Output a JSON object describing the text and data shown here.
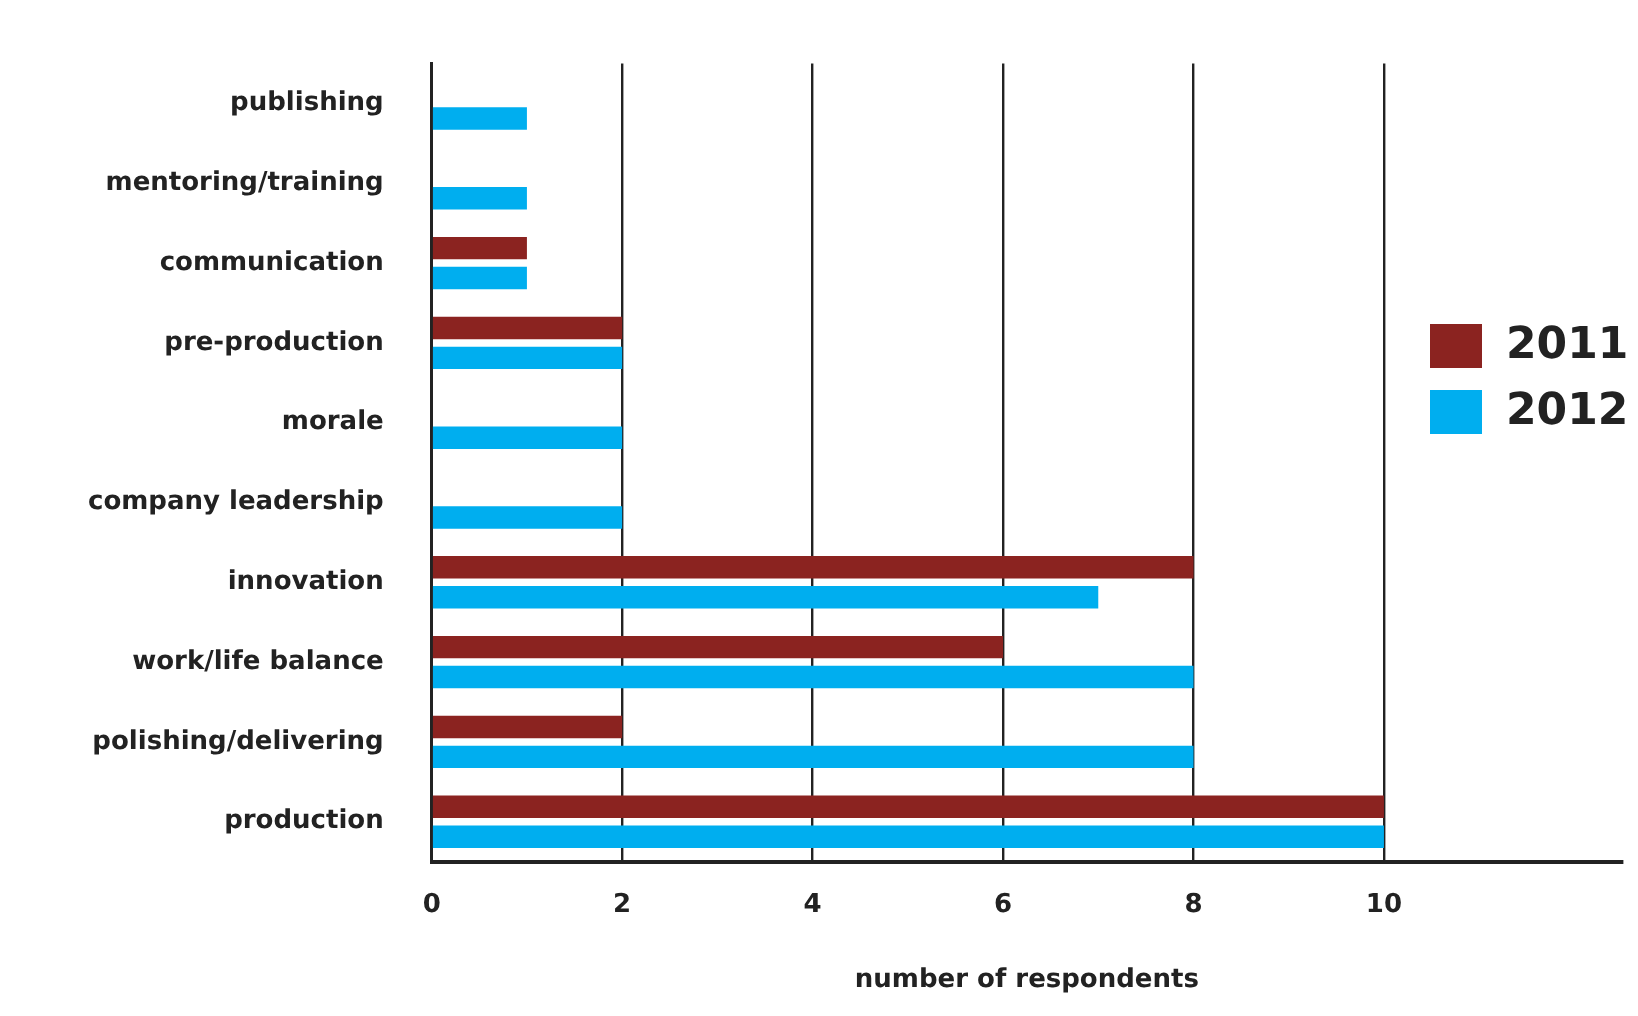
{
  "chart_data": {
    "type": "bar",
    "orientation": "horizontal",
    "xlabel": "number of respondents",
    "categories": [
      "publishing",
      "mentoring/training",
      "communication",
      "pre-production",
      "morale",
      "company leadership",
      "innovation",
      "work/life balance",
      "polishing/delivering",
      "production"
    ],
    "series": [
      {
        "name": "2011",
        "color": "#8b2320",
        "values": [
          null,
          null,
          1,
          2,
          null,
          null,
          8,
          6,
          2,
          10
        ]
      },
      {
        "name": "2012",
        "color": "#00aeef",
        "values": [
          1,
          1,
          1,
          2,
          2,
          2,
          7,
          8,
          8,
          10
        ]
      }
    ],
    "xlim": [
      0,
      12.5
    ],
    "xticks": [
      0,
      2,
      4,
      6,
      8,
      10
    ],
    "grid": "x",
    "legend": "right"
  }
}
